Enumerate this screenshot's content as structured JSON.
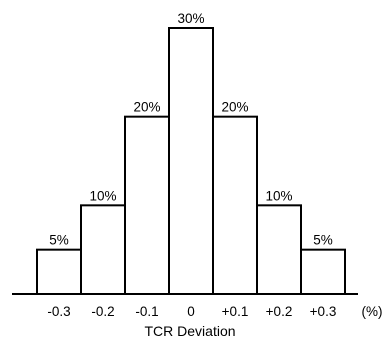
{
  "chart_data": {
    "type": "bar",
    "title": "",
    "xlabel": "TCR Deviation",
    "ylabel": "",
    "unit_label": "(%)",
    "categories": [
      "-0.3",
      "-0.2",
      "-0.1",
      "0",
      "+0.1",
      "+0.2",
      "+0.3"
    ],
    "values": [
      5,
      10,
      20,
      30,
      20,
      10,
      5
    ],
    "value_labels": [
      "5%",
      "10%",
      "20%",
      "30%",
      "20%",
      "10%",
      "5%"
    ],
    "ylim": [
      0,
      30
    ],
    "grid": false,
    "legend": "none"
  }
}
